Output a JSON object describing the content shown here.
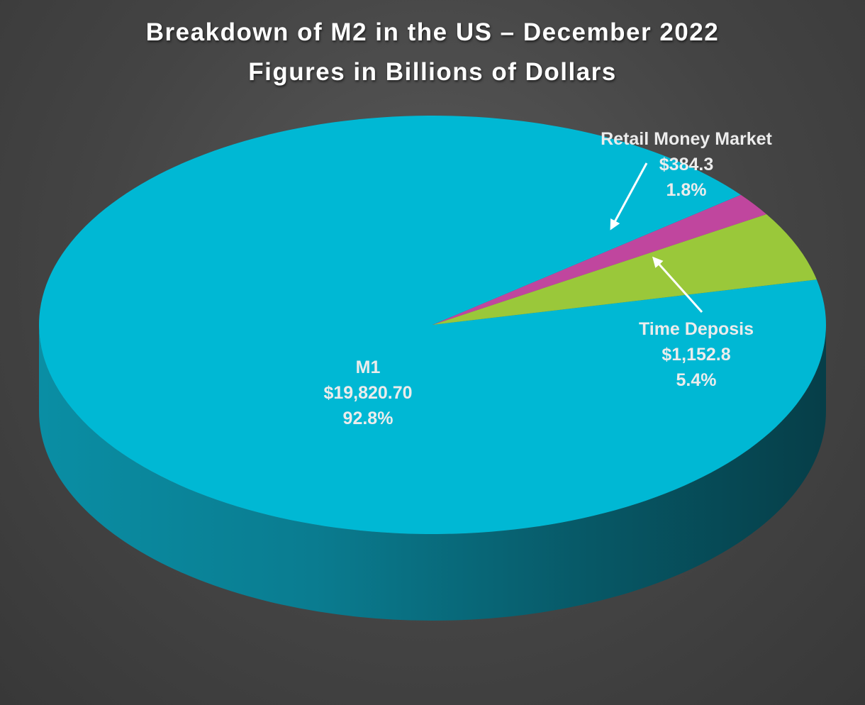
{
  "chart_data": {
    "type": "pie",
    "title": "Breakdown of M2 in the US – December 2022",
    "subtitle": "Figures in Billions of Dollars",
    "slices": [
      {
        "name": "M1",
        "value_text": "$19,820.70",
        "percent_text": "92.8%",
        "value": 19820.7,
        "percent": 92.8,
        "color": "#00b8d4"
      },
      {
        "name": "Time Deposis",
        "value_text": "$1,152.8",
        "percent_text": "5.4%",
        "value": 1152.8,
        "percent": 5.4,
        "color": "#9ac83a"
      },
      {
        "name": "Retail Money Market",
        "value_text": "$384.3",
        "percent_text": "1.8%",
        "value": 384.3,
        "percent": 1.8,
        "color": "#c0469e"
      }
    ],
    "side_color": "#0b6f80",
    "legend": "none"
  }
}
